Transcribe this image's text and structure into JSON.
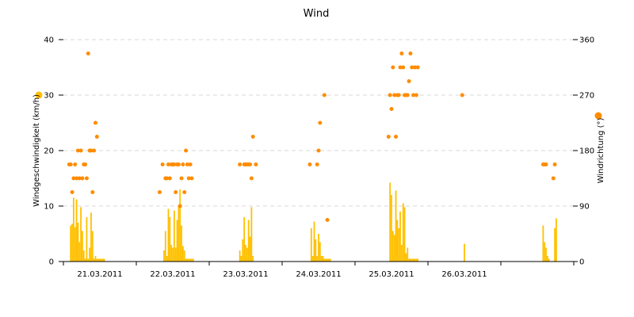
{
  "chart_data": {
    "type": "bar+scatter",
    "title": "Wind",
    "x_categories": [
      "21.03.2011",
      "22.03.2011",
      "23.03.2011",
      "24.03.2011",
      "25.03.2011",
      "26.03.2011",
      ""
    ],
    "y_left": {
      "label": "Windgeschwindigkeit (km/h)",
      "min": 0,
      "max": 40,
      "ticks": [
        0,
        10,
        20,
        30,
        40
      ]
    },
    "y_right": {
      "label": "Windrichtung (°)",
      "min": 0,
      "max": 360,
      "ticks": [
        0,
        90,
        180,
        270,
        360
      ]
    },
    "grid": true,
    "series": [
      {
        "name": "Windgeschwindigkeit (km/h)",
        "type": "bar",
        "axis": "left",
        "color": "#ffc000",
        "x_days": [
          0.1,
          0.12,
          0.14,
          0.16,
          0.18,
          0.2,
          0.22,
          0.24,
          0.26,
          0.28,
          0.3,
          0.32,
          0.34,
          0.36,
          0.38,
          0.4,
          0.42,
          0.44,
          0.46,
          0.48,
          0.5,
          0.52,
          0.54,
          0.56,
          1.38,
          1.4,
          1.42,
          1.44,
          1.46,
          1.48,
          1.5,
          1.52,
          1.54,
          1.56,
          1.58,
          1.6,
          1.62,
          1.64,
          1.66,
          1.68,
          1.7,
          1.72,
          1.74,
          1.76,
          1.78,
          2.42,
          2.44,
          2.46,
          2.48,
          2.5,
          2.52,
          2.54,
          2.56,
          2.58,
          2.6,
          3.4,
          3.42,
          3.44,
          3.46,
          3.48,
          3.5,
          3.52,
          3.54,
          3.56,
          3.58,
          3.6,
          3.62,
          3.64,
          3.66,
          4.48,
          4.5,
          4.52,
          4.54,
          4.56,
          4.58,
          4.6,
          4.62,
          4.64,
          4.66,
          4.68,
          4.7,
          4.72,
          4.74,
          4.76,
          4.78,
          4.8,
          4.82,
          4.84,
          4.86,
          5.5,
          6.58,
          6.6,
          6.62,
          6.64,
          6.66,
          6.74,
          6.76
        ],
        "values": [
          6.5,
          6.8,
          11.5,
          6.2,
          11.2,
          7.0,
          3.5,
          9.8,
          5.5,
          2.0,
          0.5,
          8.0,
          0.5,
          2.5,
          8.8,
          5.5,
          0.5,
          1.0,
          0.5,
          0.5,
          0.5,
          0.5,
          0.5,
          0.5,
          2.0,
          5.5,
          1.0,
          9.5,
          8.0,
          3.0,
          2.5,
          9.2,
          2.5,
          7.5,
          10.0,
          13.0,
          6.5,
          2.8,
          2.0,
          0.5,
          0.5,
          0.5,
          0.5,
          0.5,
          0.5,
          2.0,
          1.0,
          4.0,
          8.0,
          3.0,
          2.5,
          7.5,
          4.5,
          9.8,
          1.0,
          6.0,
          1.0,
          7.2,
          4.0,
          1.0,
          5.0,
          3.5,
          1.0,
          1.0,
          0.5,
          0.5,
          0.5,
          0.5,
          0.5,
          14.2,
          12.0,
          5.5,
          4.8,
          12.8,
          7.5,
          6.0,
          9.0,
          3.0,
          10.5,
          9.8,
          1.5,
          2.5,
          0.5,
          0.5,
          0.5,
          0.5,
          0.5,
          0.5,
          0.5,
          3.2,
          6.5,
          3.5,
          2.5,
          1.0,
          0.5,
          6.0,
          7.8
        ]
      },
      {
        "name": "Windrichtung (°)",
        "type": "scatter",
        "axis": "right",
        "color": "#ff8c00",
        "x_days": [
          0.08,
          0.1,
          0.12,
          0.14,
          0.16,
          0.18,
          0.2,
          0.22,
          0.24,
          0.26,
          0.28,
          0.3,
          0.32,
          0.34,
          0.36,
          0.38,
          0.4,
          0.42,
          0.44,
          0.46,
          1.32,
          1.36,
          1.4,
          1.42,
          1.44,
          1.46,
          1.48,
          1.5,
          1.52,
          1.54,
          1.56,
          1.58,
          1.6,
          1.62,
          1.64,
          1.66,
          1.68,
          1.7,
          1.72,
          1.74,
          1.76,
          2.42,
          2.48,
          2.5,
          2.52,
          2.54,
          2.56,
          2.58,
          2.6,
          2.64,
          3.38,
          3.48,
          3.5,
          3.52,
          3.58,
          3.62,
          4.46,
          4.48,
          4.5,
          4.52,
          4.54,
          4.56,
          4.58,
          4.6,
          4.62,
          4.64,
          4.66,
          4.68,
          4.7,
          4.72,
          4.74,
          4.76,
          4.78,
          4.8,
          4.82,
          4.84,
          4.86,
          5.47,
          6.58,
          6.6,
          6.62,
          6.72,
          6.74
        ],
        "values": [
          157.5,
          157.5,
          112.5,
          135,
          157.5,
          135,
          180,
          135,
          180,
          135,
          157.5,
          157.5,
          135,
          337.5,
          180,
          180,
          112.5,
          180,
          225,
          202.5,
          112.5,
          157.5,
          135,
          135,
          157.5,
          135,
          157.5,
          157.5,
          157.5,
          112.5,
          157.5,
          157.5,
          90,
          135,
          157.5,
          112.5,
          180,
          157.5,
          135,
          157.5,
          135,
          157.5,
          157.5,
          157.5,
          157.5,
          157.5,
          157.5,
          135,
          202.5,
          157.5,
          157.5,
          157.5,
          180,
          225,
          270,
          67.5,
          202.5,
          270,
          247.5,
          315,
          270,
          202.5,
          270,
          270,
          315,
          337.5,
          315,
          270,
          270,
          270,
          292.5,
          337.5,
          315,
          270,
          315,
          270,
          315,
          270,
          157.5,
          157.5,
          157.5,
          135,
          157.5
        ]
      }
    ]
  }
}
